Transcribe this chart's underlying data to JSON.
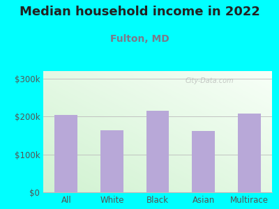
{
  "title": "Median household income in 2022",
  "subtitle": "Fulton, MD",
  "categories": [
    "All",
    "White",
    "Black",
    "Asian",
    "Multirace"
  ],
  "values": [
    205000,
    163000,
    215000,
    162000,
    207000
  ],
  "bar_color": "#b8a8d8",
  "background_color": "#00ffff",
  "yticks": [
    0,
    100000,
    200000,
    300000
  ],
  "ytick_labels": [
    "$0",
    "$100k",
    "$200k",
    "$300k"
  ],
  "ylim": [
    0,
    320000
  ],
  "title_fontsize": 13,
  "subtitle_fontsize": 10,
  "title_color": "#222222",
  "subtitle_color": "#7a7a8a",
  "tick_color": "#555555",
  "watermark": "City-Data.com",
  "grid_color": "#bbbbbb",
  "bar_width": 0.5
}
